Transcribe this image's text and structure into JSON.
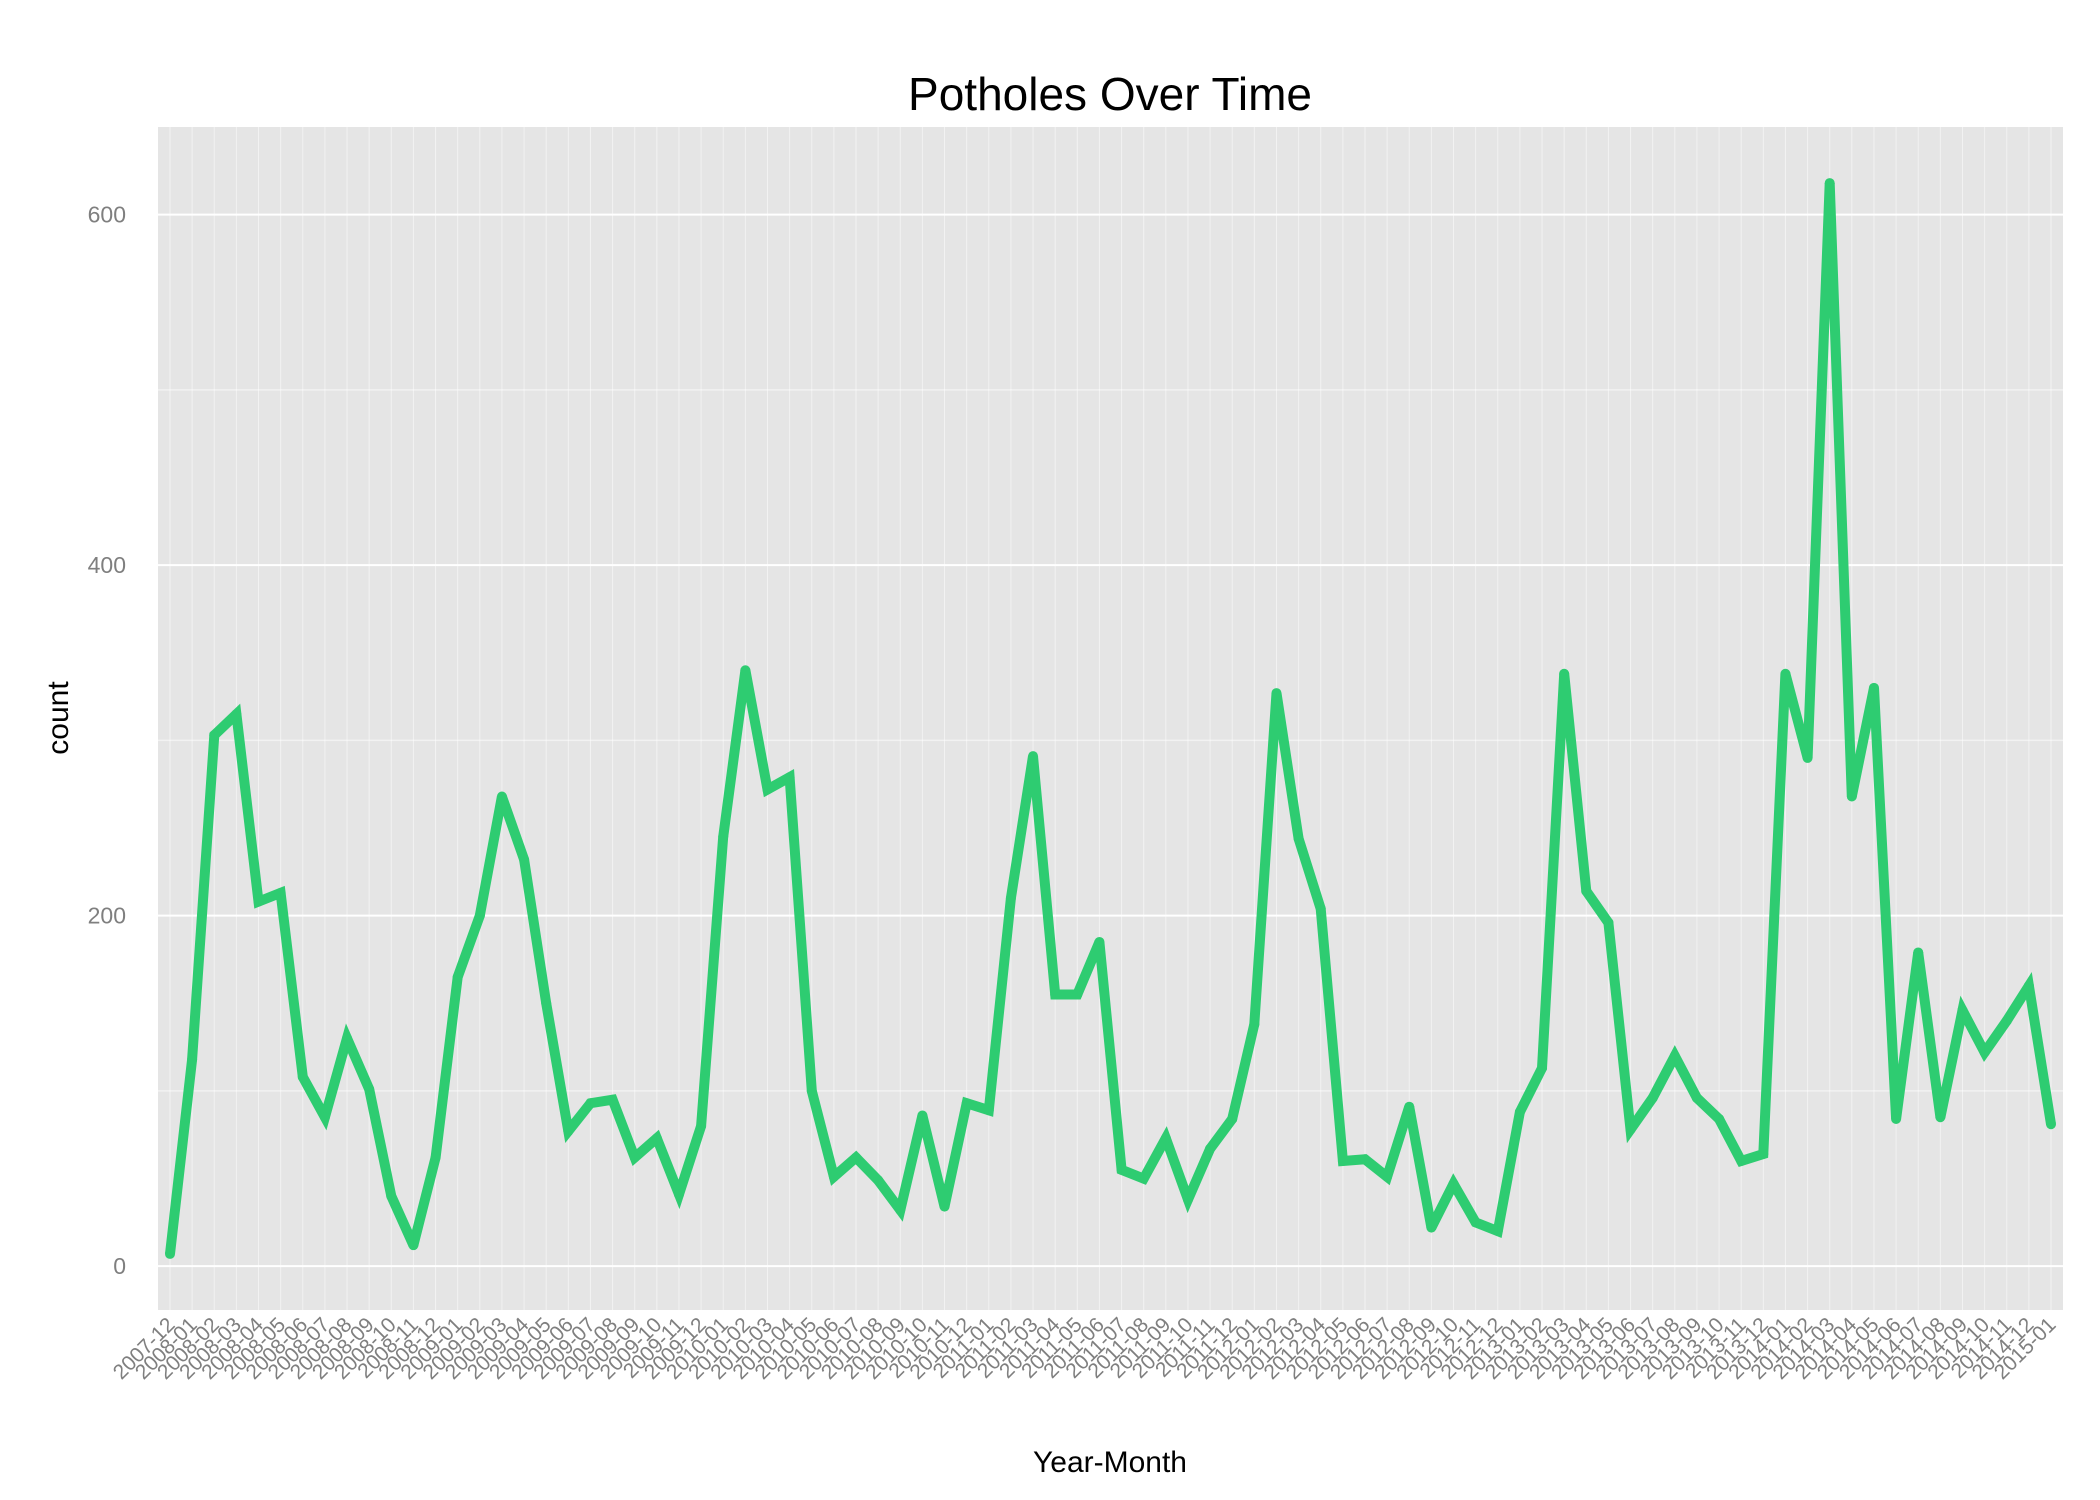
{
  "chart_data": {
    "type": "line",
    "title": "Potholes Over Time",
    "xlabel": "Year-Month",
    "ylabel": "count",
    "ylim": [
      -25,
      650
    ],
    "yticks": [
      0,
      200,
      400,
      600
    ],
    "grid": true,
    "legend": "none",
    "colors": {
      "line": "#2ecc71",
      "panel": "#e5e5e5",
      "grid_major": "#ffffff",
      "grid_minor": "#f2f2f2",
      "tick_label": "#7f7f7f"
    },
    "categories": [
      "2007-12",
      "2008-01",
      "2008-02",
      "2008-03",
      "2008-04",
      "2008-05",
      "2008-06",
      "2008-07",
      "2008-08",
      "2008-09",
      "2008-10",
      "2008-11",
      "2008-12",
      "2009-01",
      "2009-02",
      "2009-03",
      "2009-04",
      "2009-05",
      "2009-06",
      "2009-07",
      "2009-08",
      "2009-09",
      "2009-10",
      "2009-11",
      "2009-12",
      "2010-01",
      "2010-02",
      "2010-03",
      "2010-04",
      "2010-05",
      "2010-06",
      "2010-07",
      "2010-08",
      "2010-09",
      "2010-10",
      "2010-11",
      "2010-12",
      "2011-01",
      "2011-02",
      "2011-03",
      "2011-04",
      "2011-05",
      "2011-06",
      "2011-07",
      "2011-08",
      "2011-09",
      "2011-10",
      "2011-11",
      "2011-12",
      "2012-01",
      "2012-02",
      "2012-03",
      "2012-04",
      "2012-05",
      "2012-06",
      "2012-07",
      "2012-08",
      "2012-09",
      "2012-10",
      "2012-11",
      "2012-12",
      "2013-01",
      "2013-02",
      "2013-03",
      "2013-04",
      "2013-05",
      "2013-06",
      "2013-07",
      "2013-08",
      "2013-09",
      "2013-10",
      "2013-11",
      "2013-12",
      "2014-01",
      "2014-02",
      "2014-03",
      "2014-04",
      "2014-05",
      "2014-06",
      "2014-07",
      "2014-08",
      "2014-09",
      "2014-10",
      "2014-11",
      "2014-12",
      "2015-01"
    ],
    "series": [
      {
        "values": [
          7,
          118,
          303,
          315,
          208,
          213,
          108,
          85,
          130,
          101,
          40,
          12,
          62,
          165,
          200,
          268,
          232,
          150,
          77,
          93,
          95,
          62,
          73,
          41,
          80,
          245,
          340,
          272,
          279,
          100,
          51,
          62,
          49,
          32,
          86,
          34,
          93,
          89,
          210,
          291,
          155,
          155,
          185,
          55,
          50,
          73,
          38,
          67,
          84,
          138,
          327,
          244,
          204,
          60,
          61,
          51,
          91,
          22,
          47,
          25,
          20,
          88,
          113,
          338,
          214,
          196,
          78,
          96,
          120,
          96,
          84,
          60,
          64,
          338,
          290,
          618,
          268,
          330,
          84,
          179,
          85,
          146,
          122,
          140,
          160,
          81
        ]
      }
    ]
  }
}
